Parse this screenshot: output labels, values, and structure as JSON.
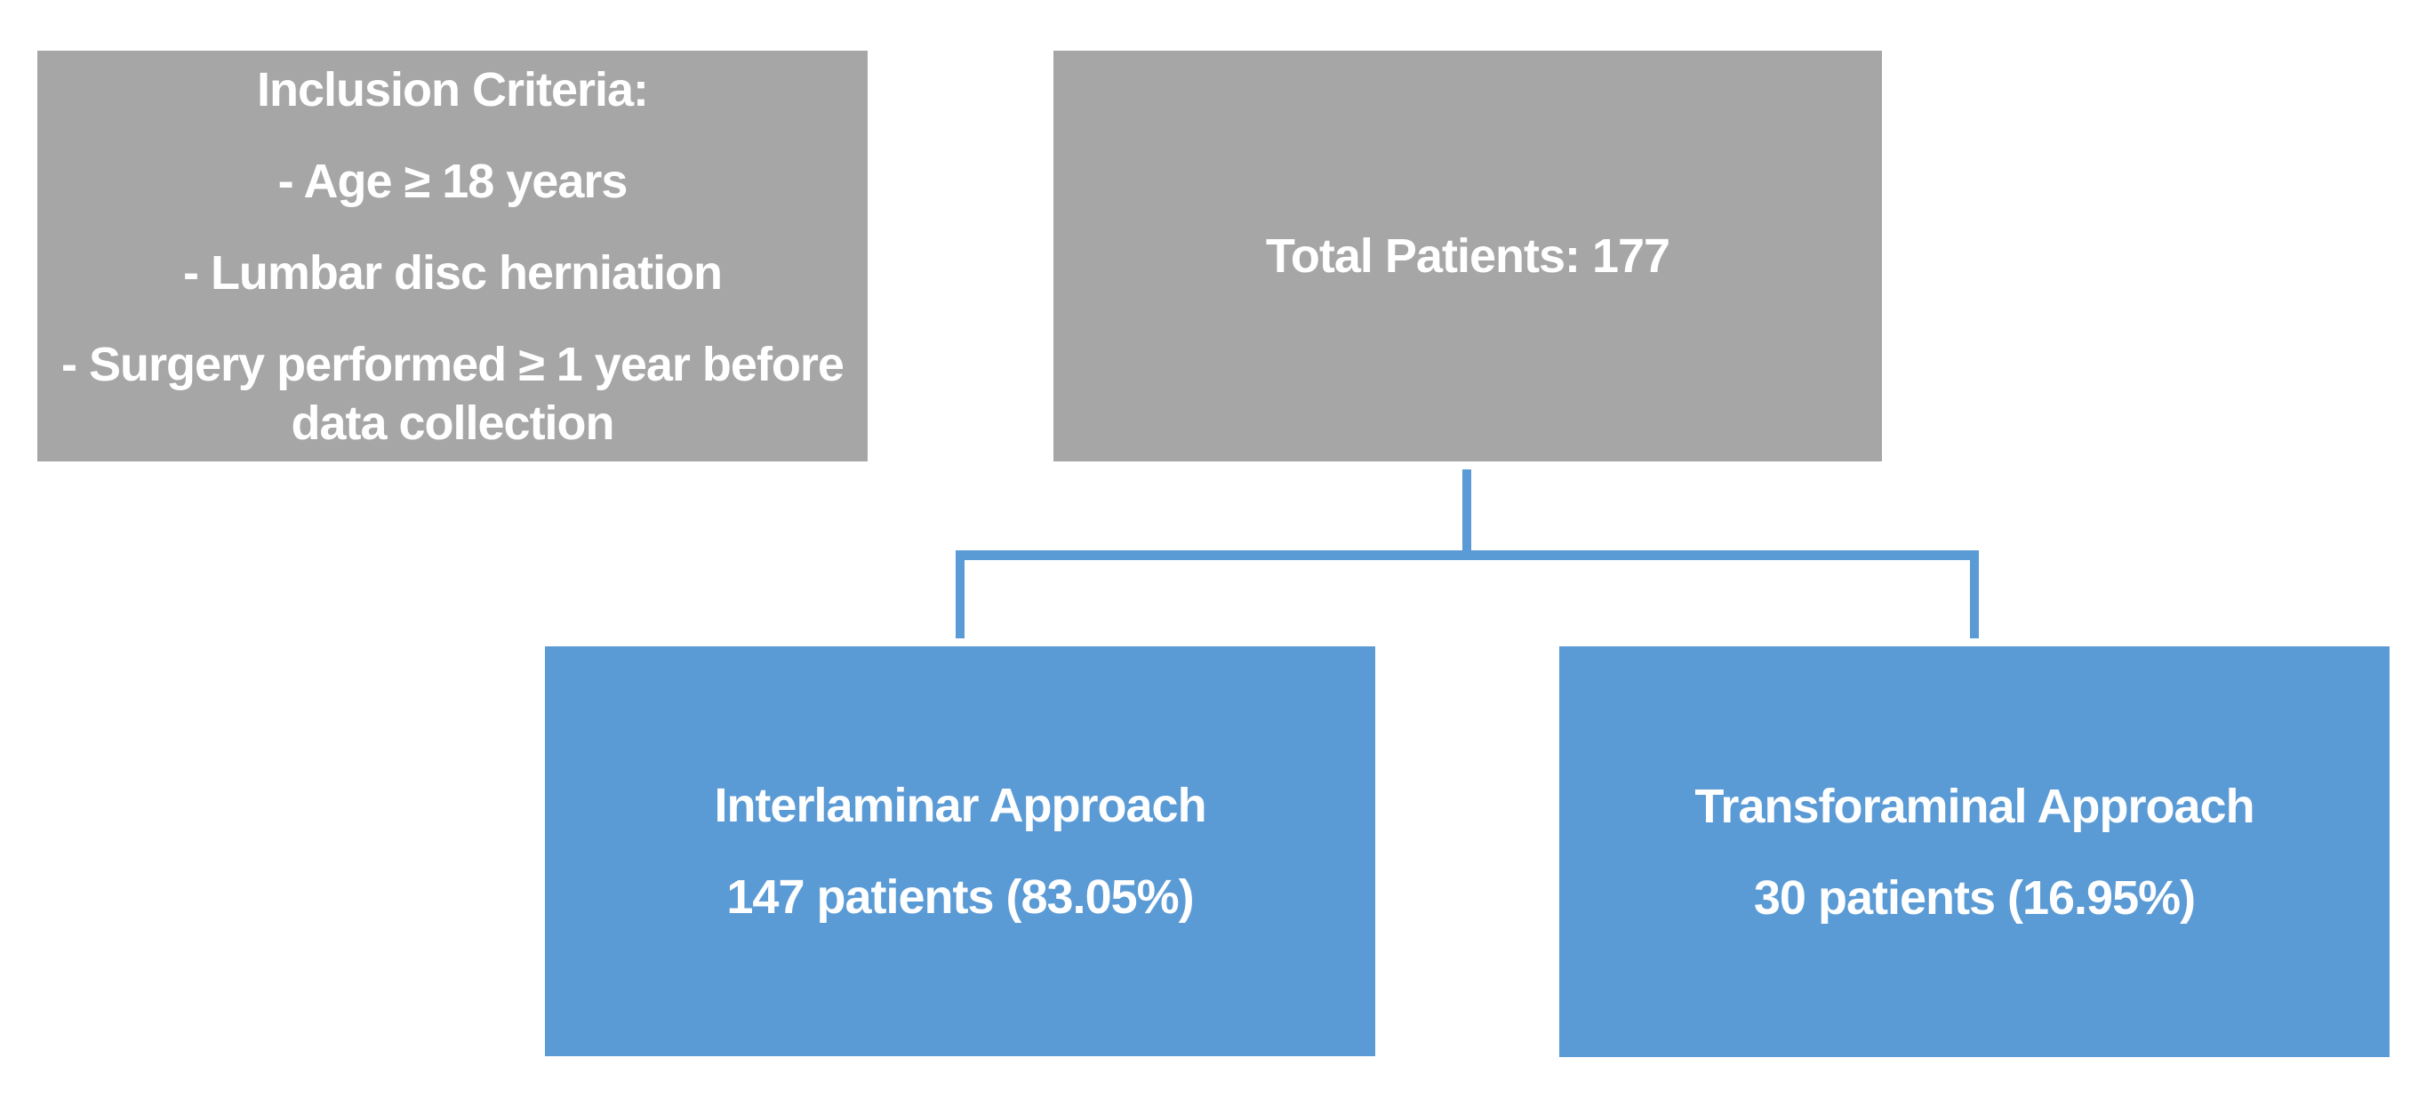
{
  "diagram": {
    "colors": {
      "box_gray": "#A6A6A6",
      "box_blue": "#5B9BD5",
      "connector_blue": "#5B9BD5",
      "text_white": "#FFFFFF"
    },
    "inclusion_box": {
      "title": "Inclusion Criteria:",
      "items": [
        "- Age ≥ 18 years",
        "- Lumbar disc herniation",
        "- Surgery performed ≥ 1 year before data collection"
      ]
    },
    "total_box": {
      "label": "Total Patients: 177"
    },
    "interlaminar_box": {
      "title": "Interlaminar Approach",
      "subtitle": "147 patients (83.05%)"
    },
    "transforaminal_box": {
      "title": "Transforaminal Approach",
      "subtitle": "30 patients (16.95%)"
    }
  }
}
